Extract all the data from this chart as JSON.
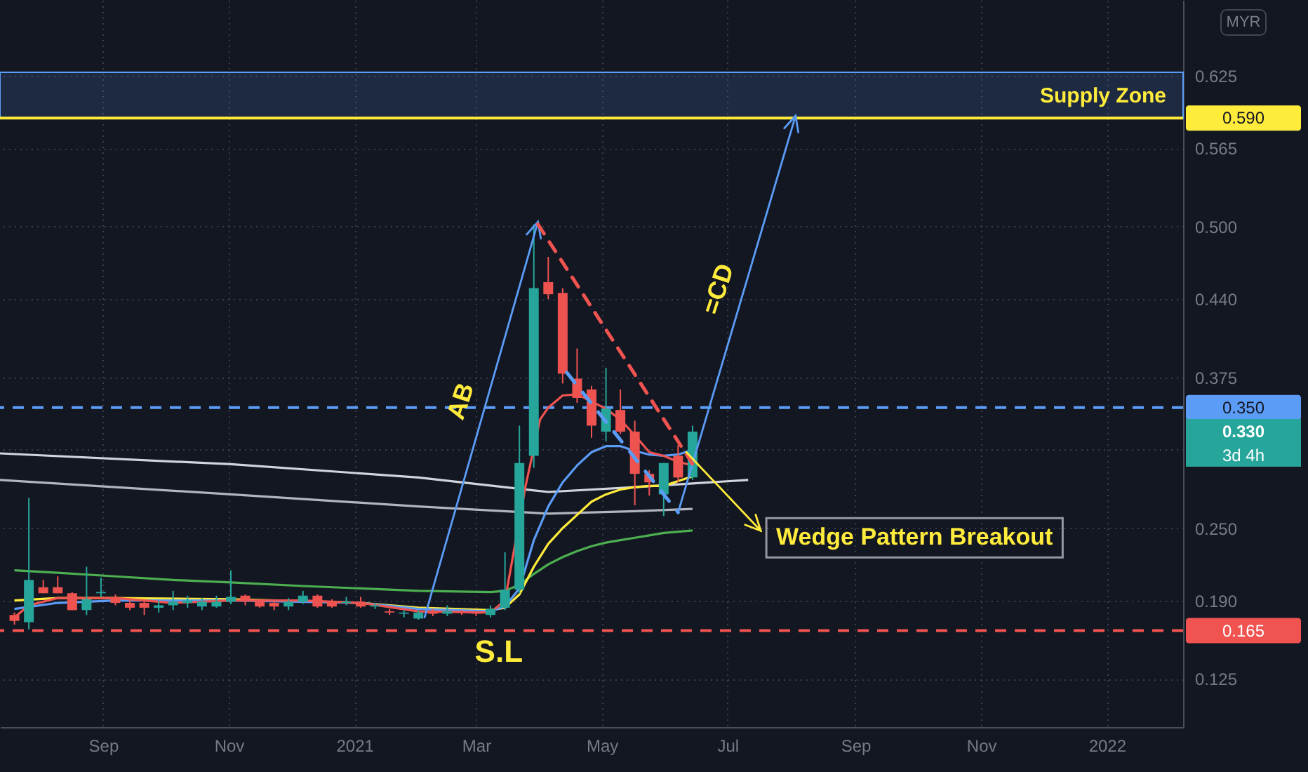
{
  "chart_data": {
    "type": "candlestick",
    "x": [
      "2020-07-20",
      "2020-07-27",
      "2020-08-03",
      "2020-08-10",
      "2020-08-17",
      "2020-08-24",
      "2020-08-31",
      "2020-09-07",
      "2020-09-14",
      "2020-09-21",
      "2020-09-28",
      "2020-10-05",
      "2020-10-12",
      "2020-10-19",
      "2020-10-26",
      "2020-11-02",
      "2020-11-09",
      "2020-11-16",
      "2020-11-23",
      "2020-11-30",
      "2020-12-07",
      "2020-12-14",
      "2020-12-21",
      "2020-12-28",
      "2021-01-04",
      "2021-01-11",
      "2021-01-18",
      "2021-01-25",
      "2021-02-01",
      "2021-02-08",
      "2021-02-15",
      "2021-02-22",
      "2021-03-01",
      "2021-03-08",
      "2021-03-15",
      "2021-03-22",
      "2021-03-29",
      "2021-04-05",
      "2021-04-12",
      "2021-04-19",
      "2021-04-26",
      "2021-05-03",
      "2021-05-10",
      "2021-05-17",
      "2021-05-24",
      "2021-05-31",
      "2021-06-07",
      "2021-06-14"
    ],
    "ohlc": [
      [
        0.178,
        0.18,
        0.17,
        0.173
      ],
      [
        0.172,
        0.275,
        0.166,
        0.207
      ],
      [
        0.201,
        0.207,
        0.196,
        0.196
      ],
      [
        0.201,
        0.21,
        0.196,
        0.196
      ],
      [
        0.196,
        0.197,
        0.182,
        0.182
      ],
      [
        0.182,
        0.218,
        0.178,
        0.191
      ],
      [
        0.196,
        0.209,
        0.193,
        0.197
      ],
      [
        0.192,
        0.195,
        0.186,
        0.188
      ],
      [
        0.188,
        0.19,
        0.182,
        0.184
      ],
      [
        0.188,
        0.189,
        0.178,
        0.184
      ],
      [
        0.184,
        0.19,
        0.18,
        0.186
      ],
      [
        0.186,
        0.198,
        0.182,
        0.189
      ],
      [
        0.188,
        0.194,
        0.184,
        0.19
      ],
      [
        0.185,
        0.192,
        0.182,
        0.189
      ],
      [
        0.185,
        0.194,
        0.184,
        0.189
      ],
      [
        0.189,
        0.215,
        0.187,
        0.193
      ],
      [
        0.194,
        0.195,
        0.186,
        0.19
      ],
      [
        0.189,
        0.19,
        0.184,
        0.185
      ],
      [
        0.188,
        0.191,
        0.182,
        0.185
      ],
      [
        0.185,
        0.192,
        0.182,
        0.189
      ],
      [
        0.189,
        0.198,
        0.187,
        0.194
      ],
      [
        0.194,
        0.195,
        0.184,
        0.185
      ],
      [
        0.189,
        0.191,
        0.184,
        0.185
      ],
      [
        0.188,
        0.193,
        0.186,
        0.189
      ],
      [
        0.189,
        0.193,
        0.184,
        0.185
      ],
      [
        0.185,
        0.188,
        0.183,
        0.186
      ],
      [
        0.181,
        0.183,
        0.178,
        0.18
      ],
      [
        0.179,
        0.182,
        0.176,
        0.18
      ],
      [
        0.175,
        0.182,
        0.174,
        0.18
      ],
      [
        0.181,
        0.183,
        0.177,
        0.179
      ],
      [
        0.179,
        0.186,
        0.177,
        0.181
      ],
      [
        0.181,
        0.182,
        0.178,
        0.18
      ],
      [
        0.18,
        0.181,
        0.177,
        0.179
      ],
      [
        0.178,
        0.186,
        0.176,
        0.183
      ],
      [
        0.184,
        0.23,
        0.182,
        0.199
      ],
      [
        0.199,
        0.335,
        0.196,
        0.304
      ],
      [
        0.31,
        0.502,
        0.3,
        0.449
      ],
      [
        0.454,
        0.475,
        0.44,
        0.444
      ],
      [
        0.445,
        0.449,
        0.37,
        0.378
      ],
      [
        0.374,
        0.399,
        0.354,
        0.358
      ],
      [
        0.365,
        0.368,
        0.325,
        0.335
      ],
      [
        0.33,
        0.383,
        0.322,
        0.349
      ],
      [
        0.348,
        0.365,
        0.328,
        0.33
      ],
      [
        0.33,
        0.339,
        0.269,
        0.295
      ],
      [
        0.295,
        0.298,
        0.277,
        0.288
      ],
      [
        0.278,
        0.304,
        0.26,
        0.304
      ],
      [
        0.31,
        0.319,
        0.288,
        0.292
      ],
      [
        0.292,
        0.335,
        0.29,
        0.33
      ]
    ],
    "series": [
      {
        "type": "line",
        "color": "#d1d4dc",
        "x": [
          "2020-07-13",
          "2020-11-02",
          "2021-02-01",
          "2021-04-05",
          "2021-05-17",
          "2021-07-11"
        ],
        "values": [
          0.312,
          0.303,
          0.292,
          0.28,
          0.284,
          0.29
        ]
      },
      {
        "type": "line",
        "color": "#b2b5be",
        "x": [
          "2020-07-13",
          "2020-11-02",
          "2021-02-01",
          "2021-04-05",
          "2021-05-17",
          "2021-06-14"
        ],
        "values": [
          0.29,
          0.278,
          0.268,
          0.262,
          0.264,
          0.266
        ]
      },
      {
        "type": "line",
        "color": "#4caf50",
        "x": [
          "2020-07-20",
          "2020-08-10",
          "2020-09-07",
          "2020-10-05",
          "2020-11-02",
          "2020-12-07",
          "2021-01-04",
          "2021-02-01",
          "2021-03-08",
          "2021-03-15",
          "2021-03-22",
          "2021-03-29",
          "2021-04-05",
          "2021-04-12",
          "2021-04-19",
          "2021-04-26",
          "2021-05-03",
          "2021-05-10",
          "2021-05-17",
          "2021-05-24",
          "2021-05-31",
          "2021-06-07",
          "2021-06-14"
        ],
        "values": [
          0.215,
          0.213,
          0.21,
          0.207,
          0.205,
          0.202,
          0.2,
          0.198,
          0.197,
          0.198,
          0.203,
          0.212,
          0.22,
          0.226,
          0.231,
          0.235,
          0.238,
          0.24,
          0.242,
          0.244,
          0.246,
          0.247,
          0.248
        ]
      },
      {
        "type": "line",
        "color": "#ffeb3b",
        "x": [
          "2020-07-20",
          "2020-08-10",
          "2020-09-07",
          "2020-11-02",
          "2021-01-04",
          "2021-02-01",
          "2021-03-08",
          "2021-03-15",
          "2021-03-22",
          "2021-03-29",
          "2021-04-05",
          "2021-04-12",
          "2021-04-19",
          "2021-04-26",
          "2021-05-03",
          "2021-05-10",
          "2021-05-17",
          "2021-05-24",
          "2021-05-31",
          "2021-06-07",
          "2021-06-14"
        ],
        "values": [
          0.19,
          0.192,
          0.192,
          0.191,
          0.188,
          0.184,
          0.182,
          0.184,
          0.195,
          0.218,
          0.237,
          0.25,
          0.261,
          0.272,
          0.278,
          0.282,
          0.284,
          0.285,
          0.285,
          0.289,
          0.293
        ]
      },
      {
        "type": "line",
        "color": "#5b9cf6",
        "x": [
          "2020-07-20",
          "2020-08-10",
          "2020-09-07",
          "2020-11-02",
          "2021-01-04",
          "2021-02-01",
          "2021-03-08",
          "2021-03-15",
          "2021-03-22",
          "2021-03-29",
          "2021-04-05",
          "2021-04-12",
          "2021-04-19",
          "2021-04-26",
          "2021-05-03",
          "2021-05-10",
          "2021-05-17",
          "2021-05-24",
          "2021-05-31",
          "2021-06-07",
          "2021-06-14"
        ],
        "values": [
          0.183,
          0.188,
          0.19,
          0.19,
          0.188,
          0.183,
          0.181,
          0.185,
          0.2,
          0.24,
          0.268,
          0.288,
          0.302,
          0.313,
          0.318,
          0.318,
          0.314,
          0.311,
          0.31,
          0.311,
          0.315
        ]
      },
      {
        "type": "line",
        "color": "#f05350",
        "x": [
          "2020-07-20",
          "2020-07-27",
          "2020-08-10",
          "2020-09-07",
          "2020-10-05",
          "2020-11-02",
          "2020-12-07",
          "2021-01-04",
          "2021-02-01",
          "2021-03-08",
          "2021-03-15",
          "2021-03-25",
          "2021-04-01",
          "2021-04-05",
          "2021-04-12",
          "2021-04-19",
          "2021-04-26",
          "2021-05-03",
          "2021-05-10",
          "2021-05-17",
          "2021-05-24",
          "2021-05-31",
          "2021-06-07",
          "2021-06-14"
        ],
        "values": [
          0.176,
          0.186,
          0.192,
          0.192,
          0.188,
          0.19,
          0.19,
          0.188,
          0.181,
          0.18,
          0.19,
          0.285,
          0.34,
          0.35,
          0.36,
          0.361,
          0.355,
          0.349,
          0.34,
          0.327,
          0.313,
          0.31,
          0.305,
          0.302
        ]
      }
    ],
    "xlim": [
      "2020-07-13",
      "2022-02-07"
    ],
    "xticks": [
      {
        "value": "2020-09-01",
        "label": "Sep"
      },
      {
        "value": "2020-11-01",
        "label": "Nov"
      },
      {
        "value": "2021-01-01",
        "label": "2021"
      },
      {
        "value": "2021-03-01",
        "label": "Mar"
      },
      {
        "value": "2021-05-01",
        "label": "May"
      },
      {
        "value": "2021-07-01",
        "label": "Jul"
      },
      {
        "value": "2021-09-01",
        "label": "Sep"
      },
      {
        "value": "2021-11-01",
        "label": "Nov"
      },
      {
        "value": "2022-01-01",
        "label": "2022"
      }
    ],
    "ylim": [
      0.085,
      0.688
    ],
    "yticks": [
      {
        "value": 0.125,
        "label": "0.125"
      },
      {
        "value": 0.19,
        "label": "0.190"
      },
      {
        "value": 0.25,
        "label": "0.250"
      },
      {
        "value": 0.315,
        "label": null
      },
      {
        "value": 0.375,
        "label": "0.375"
      },
      {
        "value": 0.44,
        "label": "0.440"
      },
      {
        "value": 0.5,
        "label": "0.500"
      },
      {
        "value": 0.565,
        "label": "0.565"
      },
      {
        "value": 0.625,
        "label": "0.625"
      }
    ],
    "grid": true,
    "bands": [
      {
        "axis": "y",
        "from": 0.59,
        "to": 0.628,
        "label": "Supply Zone",
        "color": "#5b9cf6"
      }
    ],
    "ref_lines": [
      {
        "axis": "y",
        "value": 0.59,
        "label": "0.590",
        "color": "#ffeb3b",
        "line_style": "solid"
      },
      {
        "axis": "y",
        "value": 0.35,
        "label": "0.350",
        "color": "#5b9cf6",
        "line_style": "dashed"
      },
      {
        "axis": "y",
        "value": 0.165,
        "label": "0.165",
        "color": "#f05350",
        "line_style": "dashed"
      }
    ],
    "annotations": [
      {
        "text": "AB",
        "x": "2021-02-22",
        "y": 0.355
      },
      "=CD",
      "S.L",
      {
        "text": "Wedge Pattern Breakout",
        "x": "2021-06-11",
        "y": 0.313
      },
      "0.330",
      "3d 4h",
      "MYR"
    ]
  }
}
